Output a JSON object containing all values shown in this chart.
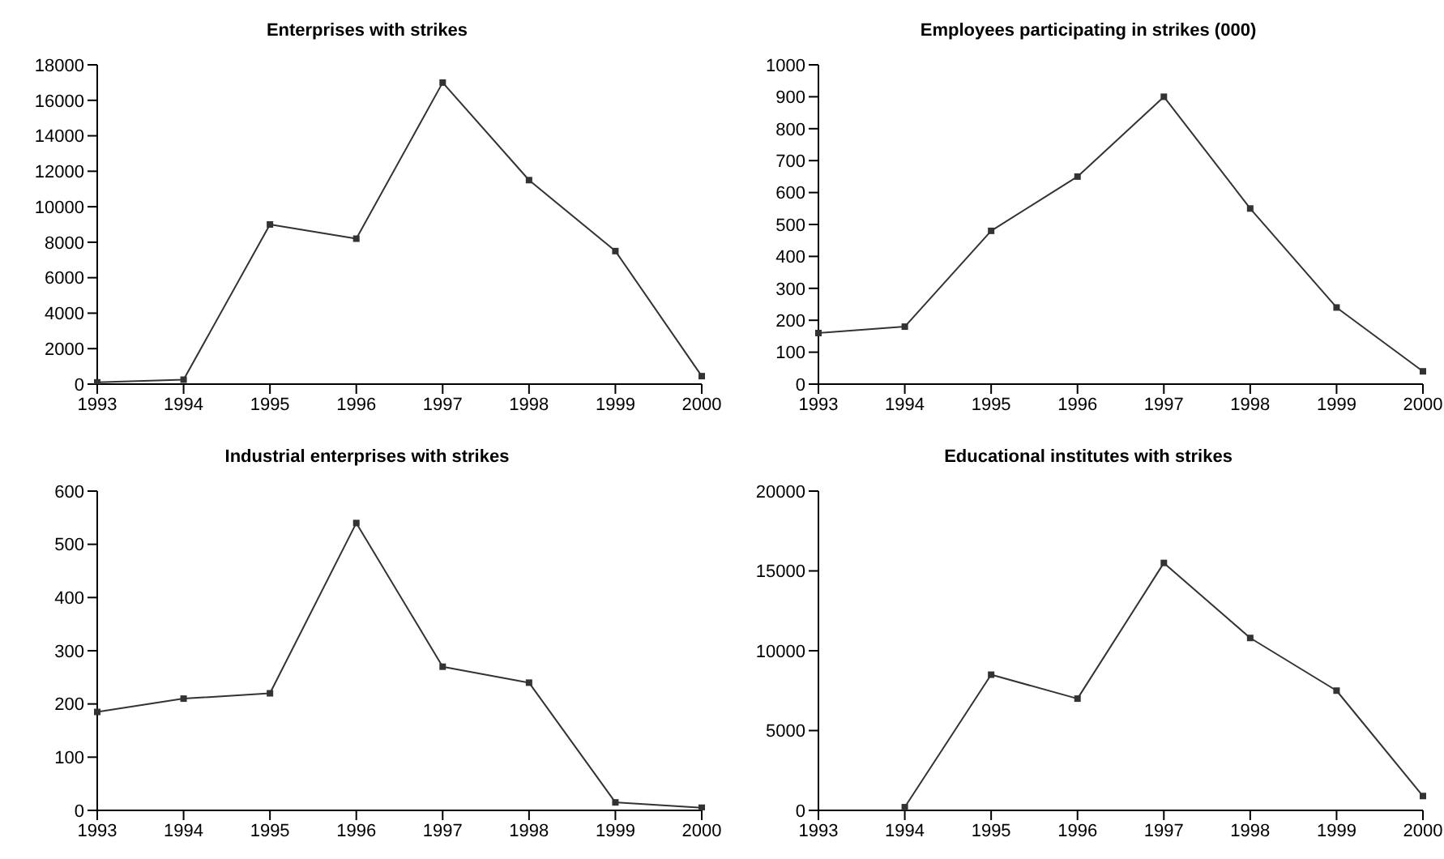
{
  "chart_data": [
    {
      "type": "line",
      "title": "Enterprises with strikes",
      "categories": [
        "1993",
        "1994",
        "1995",
        "1996",
        "1997",
        "1998",
        "1999",
        "2000"
      ],
      "series": [
        {
          "color": "#333333",
          "values": [
            100,
            250,
            9000,
            8200,
            17000,
            11500,
            7500,
            450
          ]
        }
      ],
      "ylim": [
        0,
        18000
      ],
      "yticks": [
        0,
        2000,
        4000,
        6000,
        8000,
        10000,
        12000,
        14000,
        16000,
        18000
      ],
      "grid": false,
      "legend": false,
      "marker": "square",
      "line_style": "solid"
    },
    {
      "type": "line",
      "title": "Employees participating in strikes (000)",
      "categories": [
        "1993",
        "1994",
        "1995",
        "1996",
        "1997",
        "1998",
        "1999",
        "2000"
      ],
      "series": [
        {
          "color": "#333333",
          "values": [
            160,
            180,
            480,
            650,
            900,
            550,
            240,
            40
          ]
        }
      ],
      "ylim": [
        0,
        1000
      ],
      "yticks": [
        0,
        100,
        200,
        300,
        400,
        500,
        600,
        700,
        800,
        900,
        1000
      ],
      "grid": false,
      "legend": false,
      "marker": "square",
      "line_style": "solid"
    },
    {
      "type": "line",
      "title": "Industrial enterprises with strikes",
      "categories": [
        "1993",
        "1994",
        "1995",
        "1996",
        "1997",
        "1998",
        "1999",
        "2000"
      ],
      "series": [
        {
          "color": "#333333",
          "values": [
            185,
            210,
            220,
            540,
            270,
            240,
            15,
            5
          ]
        }
      ],
      "ylim": [
        0,
        600
      ],
      "yticks": [
        0,
        100,
        200,
        300,
        400,
        500,
        600
      ],
      "grid": false,
      "legend": false,
      "marker": "square",
      "line_style": "solid"
    },
    {
      "type": "line",
      "title": "Educational institutes with strikes",
      "categories": [
        "1993",
        "1994",
        "1995",
        "1996",
        "1997",
        "1998",
        "1999",
        "2000"
      ],
      "series": [
        {
          "color": "#333333",
          "values": [
            null,
            200,
            8500,
            7000,
            15500,
            10800,
            7500,
            900
          ]
        }
      ],
      "ylim": [
        0,
        20000
      ],
      "yticks": [
        0,
        5000,
        10000,
        15000,
        20000
      ],
      "grid": false,
      "legend": false,
      "marker": "square",
      "line_style": "solid"
    }
  ]
}
